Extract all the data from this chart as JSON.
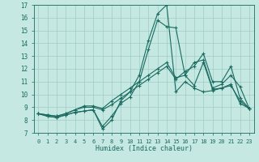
{
  "xlabel": "Humidex (Indice chaleur)",
  "xlim": [
    -0.5,
    23.5
  ],
  "ylim": [
    7,
    17
  ],
  "xticks": [
    0,
    1,
    2,
    3,
    4,
    5,
    6,
    7,
    8,
    9,
    10,
    11,
    12,
    13,
    14,
    15,
    16,
    17,
    18,
    19,
    20,
    21,
    22,
    23
  ],
  "yticks": [
    7,
    8,
    9,
    10,
    11,
    12,
    13,
    14,
    15,
    16,
    17
  ],
  "bg_color": "#c5e8e2",
  "grid_color": "#9ecdc5",
  "line_color": "#1a6b60",
  "lines": [
    [
      8.5,
      8.3,
      8.2,
      8.4,
      8.6,
      8.7,
      8.8,
      7.3,
      8.0,
      9.5,
      10.2,
      11.5,
      14.2,
      16.3,
      17.0,
      10.2,
      11.0,
      10.5,
      10.2,
      10.3,
      10.5,
      10.7,
      9.5,
      8.9
    ],
    [
      8.5,
      8.3,
      8.2,
      8.4,
      8.6,
      8.7,
      8.8,
      7.5,
      8.3,
      9.3,
      9.8,
      11.0,
      13.5,
      15.8,
      15.3,
      15.2,
      11.5,
      10.7,
      12.5,
      10.4,
      10.5,
      10.8,
      9.3,
      8.9
    ],
    [
      8.5,
      8.4,
      8.3,
      8.5,
      8.8,
      9.1,
      9.1,
      8.9,
      9.5,
      10.0,
      10.5,
      11.0,
      11.5,
      12.0,
      12.5,
      11.3,
      11.5,
      12.5,
      12.7,
      10.5,
      10.8,
      11.5,
      10.6,
      8.9
    ],
    [
      8.5,
      8.4,
      8.3,
      8.5,
      8.8,
      9.0,
      9.0,
      8.8,
      9.2,
      9.7,
      10.2,
      10.7,
      11.2,
      11.7,
      12.2,
      11.2,
      11.8,
      12.2,
      13.2,
      11.0,
      11.0,
      12.2,
      9.7,
      8.9
    ]
  ]
}
